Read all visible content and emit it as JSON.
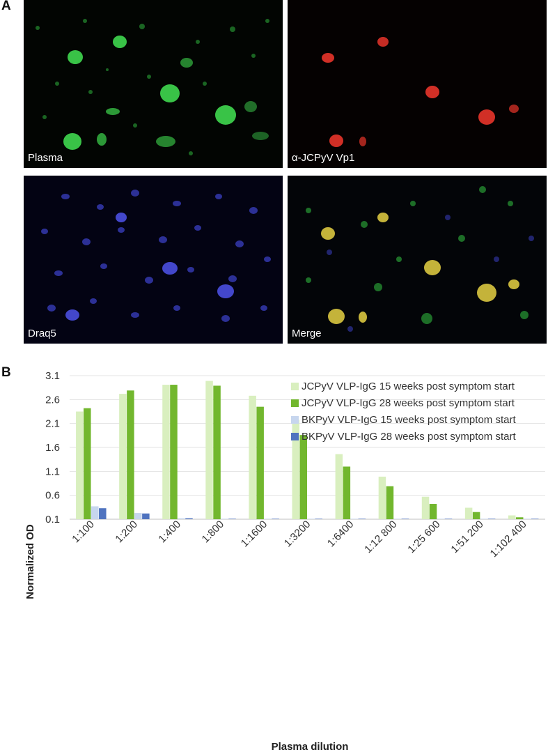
{
  "figure": {
    "panel_a_label": "A",
    "panel_b_label": "B"
  },
  "micrographs": [
    {
      "caption": "Plasma"
    },
    {
      "caption": "α-JCPyV Vp1"
    },
    {
      "caption": "Draq5"
    },
    {
      "caption": "Merge"
    }
  ],
  "chart_data": {
    "type": "bar",
    "xlabel": "Plasma dilution",
    "ylabel": "Normalized OD",
    "ylim": [
      0.1,
      3.1
    ],
    "yticks": [
      "0.1",
      "0.6",
      "1.1",
      "1.6",
      "2.1",
      "2.6",
      "3.1"
    ],
    "grid": true,
    "legend_position": "top-right",
    "categories": [
      "1:100",
      "1:200",
      "1:400",
      "1:800",
      "1:1600",
      "1:3200",
      "1:6400",
      "1:12 800",
      "1:25 600",
      "1:51 200",
      "1:102 400"
    ],
    "series": [
      {
        "name": "JCPyV VLP-IgG 15 weeks post symptom start",
        "color": "#d9efbf",
        "values": [
          2.35,
          2.72,
          2.91,
          2.99,
          2.68,
          2.18,
          1.46,
          0.99,
          0.57,
          0.34,
          0.18
        ]
      },
      {
        "name": "JCPyV VLP-IgG 28 weeks post symptom start",
        "color": "#72b72e",
        "values": [
          2.42,
          2.79,
          2.91,
          2.89,
          2.45,
          1.86,
          1.2,
          0.79,
          0.42,
          0.25,
          0.14
        ]
      },
      {
        "name": "BKPyV VLP-IgG 15 weeks post symptom start",
        "color": "#c7d6ee",
        "values": [
          0.37,
          0.23,
          0.12,
          0.11,
          0.11,
          0.11,
          0.11,
          0.11,
          0.11,
          0.11,
          0.11
        ]
      },
      {
        "name": "BKPyV VLP-IgG 28 weeks post symptom start",
        "color": "#4f73bf",
        "values": [
          0.33,
          0.22,
          0.12,
          0.11,
          0.11,
          0.11,
          0.11,
          0.11,
          0.11,
          0.11,
          0.11
        ]
      }
    ]
  }
}
